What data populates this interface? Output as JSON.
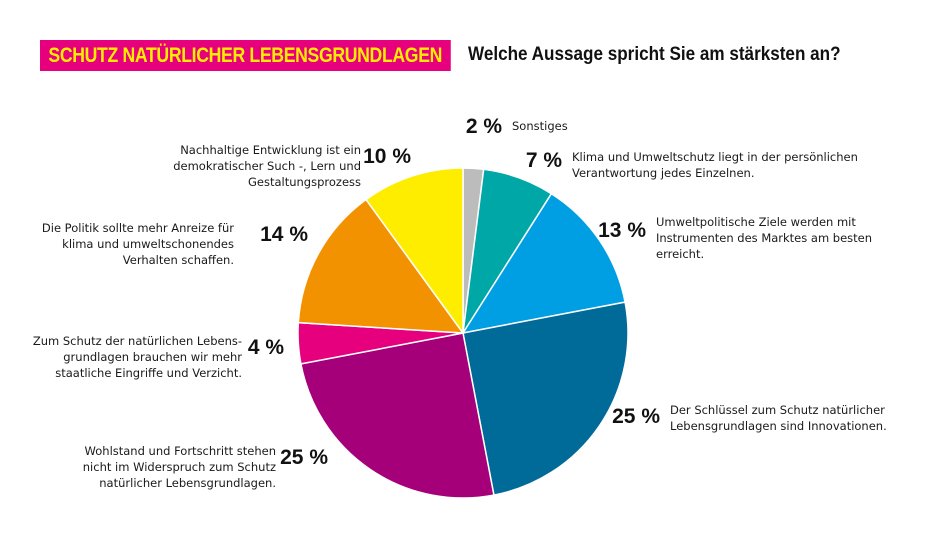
{
  "header": {
    "badge": "SCHUTZ NATÜRLICHER LEBENSGRUNDLAGEN",
    "question": "Welche Aussage spricht Sie am stärksten an?"
  },
  "chart_data": {
    "type": "pie",
    "title": "Welche Aussage spricht Sie am stärksten an?",
    "slices": [
      {
        "value": 2,
        "pct_label": "2 %",
        "color": "#bcbcbc",
        "lines": [
          "Sonstiges"
        ]
      },
      {
        "value": 7,
        "pct_label": "7 %",
        "color": "#00a7a7",
        "lines": [
          "Klima und Umweltschutz liegt in der persönlichen",
          "Verantwortung jedes Einzelnen."
        ]
      },
      {
        "value": 13,
        "pct_label": "13 %",
        "color": "#009fe3",
        "lines": [
          "Umweltpolitische Ziele werden mit",
          "Instrumenten des Marktes am besten",
          "erreicht."
        ]
      },
      {
        "value": 25,
        "pct_label": "25 %",
        "color": "#006b98",
        "lines": [
          "Der Schlüssel zum Schutz natürlicher",
          "Lebensgrundlagen sind Innovationen."
        ]
      },
      {
        "value": 25,
        "pct_label": "25 %",
        "color": "#a5007a",
        "lines": [
          "Wohlstand und Fortschritt stehen",
          "nicht im Widerspruch zum Schutz",
          "natürlicher Lebensgrundlagen."
        ]
      },
      {
        "value": 4,
        "pct_label": "4 %",
        "color": "#e6007e",
        "lines": [
          "Zum Schutz der natürlichen Lebens-",
          "grundlagen brauchen wir mehr",
          "staatliche Eingriffe und Verzicht."
        ]
      },
      {
        "value": 14,
        "pct_label": "14 %",
        "color": "#f39200",
        "lines": [
          "Die Politik sollte mehr Anreize für",
          "klima und umweltschonendes",
          "Verhalten schaffen."
        ]
      },
      {
        "value": 10,
        "pct_label": "10 %",
        "color": "#ffed00",
        "lines": [
          "Nachhaltige Entwicklung ist ein",
          "demokratischer Such -, Lern und",
          "Gestaltungsprozess"
        ]
      }
    ]
  }
}
